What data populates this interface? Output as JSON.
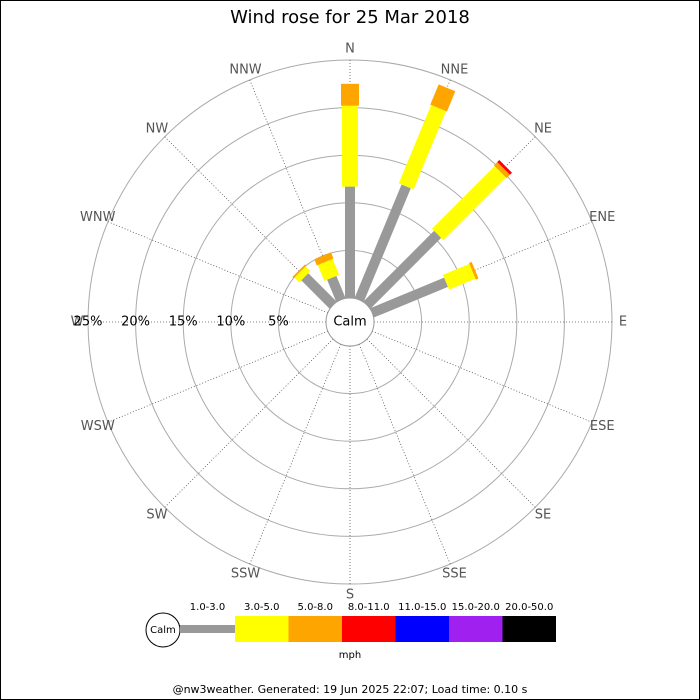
{
  "chart_data": {
    "type": "wind_rose",
    "title": "Wind rose for 25 Mar 2018",
    "directions": [
      "N",
      "NNE",
      "NE",
      "ENE",
      "E",
      "ESE",
      "SE",
      "SSE",
      "S",
      "SSW",
      "SW",
      "WSW",
      "W",
      "WNW",
      "NW",
      "NNW"
    ],
    "calm_label": "Calm",
    "rlim": [
      0,
      25
    ],
    "rticks": [
      {
        "value": 5,
        "label": "5%"
      },
      {
        "value": 10,
        "label": "10%"
      },
      {
        "value": 15,
        "label": "15%"
      },
      {
        "value": 20,
        "label": "20%"
      },
      {
        "value": 25,
        "label": "25%"
      }
    ],
    "unit": "mph",
    "series": [
      {
        "name": "1.0-3.0",
        "color": "#999999",
        "values": [
          11.7,
          12.9,
          10.5,
          8.4,
          0,
          0,
          0,
          0,
          0,
          0,
          0,
          0,
          0,
          0,
          4.2,
          2.5
        ]
      },
      {
        "name": "3.0-5.0",
        "color": "#ffff00",
        "values": [
          8.5,
          8.9,
          9.3,
          3.0,
          0,
          0,
          0,
          0,
          0,
          0,
          0,
          0,
          0,
          0,
          0.7,
          1.8
        ]
      },
      {
        "name": "5.0-8.0",
        "color": "#ffa500",
        "values": [
          2.3,
          2.3,
          0.5,
          0.3,
          0,
          0,
          0,
          0,
          0,
          0,
          0,
          0,
          0,
          0,
          0.2,
          0.7
        ]
      },
      {
        "name": "8.0-11.0",
        "color": "#ff0000",
        "values": [
          0,
          0,
          0.3,
          0,
          0,
          0,
          0,
          0,
          0,
          0,
          0,
          0,
          0,
          0,
          0,
          0
        ]
      },
      {
        "name": "11.0-15.0",
        "color": "#0000ff",
        "values": [
          0,
          0,
          0,
          0,
          0,
          0,
          0,
          0,
          0,
          0,
          0,
          0,
          0,
          0,
          0,
          0
        ]
      },
      {
        "name": "15.0-20.0",
        "color": "#a020f0",
        "values": [
          0,
          0,
          0,
          0,
          0,
          0,
          0,
          0,
          0,
          0,
          0,
          0,
          0,
          0,
          0,
          0
        ]
      },
      {
        "name": "20.0-50.0",
        "color": "#000000",
        "values": [
          0,
          0,
          0,
          0,
          0,
          0,
          0,
          0,
          0,
          0,
          0,
          0,
          0,
          0,
          0,
          0
        ]
      }
    ],
    "footer": "@nw3weather. Generated: 19 Jun 2025 22:07; Load time: 0.10 s"
  }
}
